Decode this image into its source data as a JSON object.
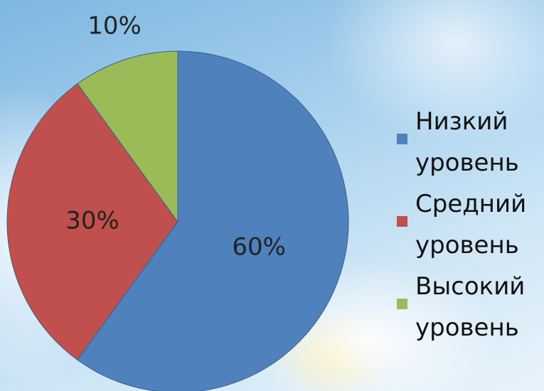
{
  "chart_data": {
    "type": "pie",
    "categories": [
      "Низкий уровень",
      "Средний уровень",
      "Высокий уровень"
    ],
    "values": [
      60,
      30,
      10
    ],
    "value_labels": [
      "60%",
      "30%",
      "10%"
    ],
    "colors": [
      "#4f81bd",
      "#c0504d",
      "#9bbb59"
    ],
    "legend": "right"
  }
}
